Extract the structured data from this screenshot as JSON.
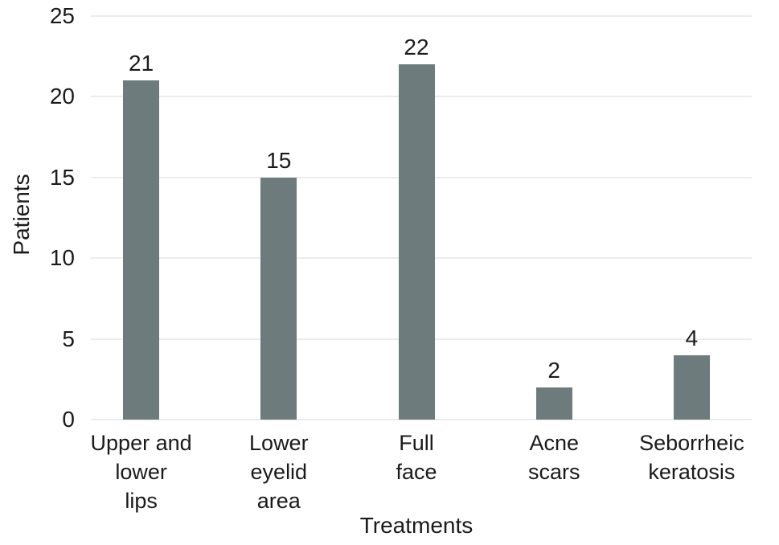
{
  "chart_data": {
    "type": "bar",
    "title": "",
    "xlabel": "Treatments",
    "ylabel": "Patients",
    "categories": [
      "Upper and lower lips",
      "Lower eyelid area",
      "Full face",
      "Acne scars",
      "Seborrheic keratosis"
    ],
    "categories_wrapped": [
      [
        "Upper and",
        "lower",
        "lips"
      ],
      [
        "Lower",
        "eyelid",
        "area"
      ],
      [
        "Full",
        "face"
      ],
      [
        "Acne",
        "scars"
      ],
      [
        "Seborrheic",
        "keratosis"
      ]
    ],
    "values": [
      21,
      15,
      22,
      2,
      4
    ],
    "value_labels": [
      "21",
      "15",
      "22",
      "2",
      "4"
    ],
    "ylim": [
      0,
      25
    ],
    "yticks": [
      25,
      20,
      15,
      10,
      5,
      0
    ],
    "grid": "horizontal",
    "legend": "none",
    "colors": {
      "bar": "#6d7b7c",
      "gridline": "#ececec",
      "text": "#1a1a1a",
      "background": "#ffffff"
    }
  }
}
